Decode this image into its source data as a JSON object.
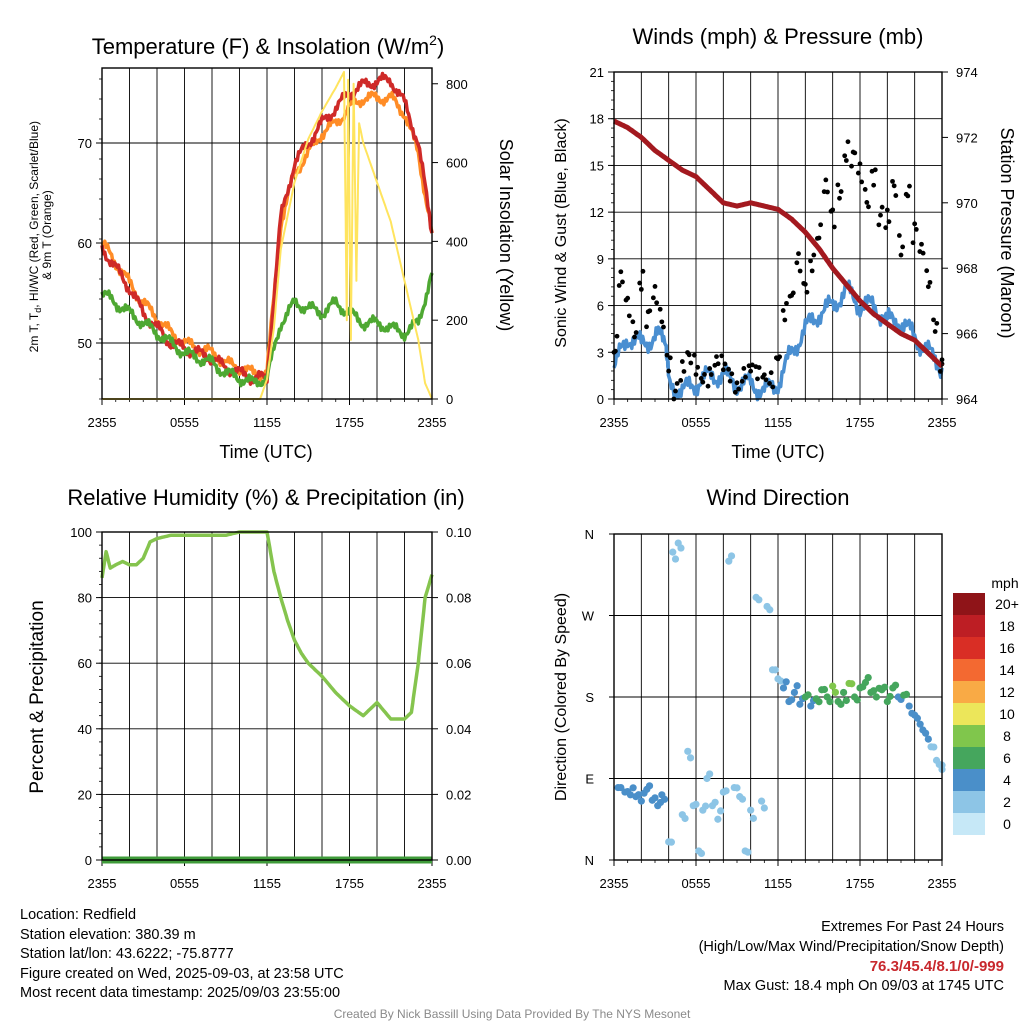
{
  "chart_data": [
    {
      "id": "temperature",
      "type": "line",
      "title": "Temperature (F) & Insolation (W/m",
      "title_sup": "2",
      "title_close": ")",
      "xlabel": "Time (UTC)",
      "ylabel_lines": [
        "2m T, T",
        "d",
        ", HI/WC (Red, Green, Scarlet/Blue)",
        "& 9m T (Orange)"
      ],
      "y2label": "Solar Insolation (Yellow)",
      "x_ticks": [
        "2355",
        "0555",
        "1155",
        "1755",
        "2355"
      ],
      "x_range_hours": [
        0,
        24
      ],
      "ylim": [
        44.4,
        77.5
      ],
      "y_ticks": [
        50,
        60,
        70
      ],
      "y2lim": [
        0,
        840
      ],
      "y2_ticks": [
        0,
        200,
        400,
        600,
        800
      ],
      "grid": true,
      "series": [
        {
          "color": "#ff8c26",
          "x": [
            0,
            1,
            2,
            3,
            4,
            5,
            6,
            7,
            8,
            9,
            10,
            11,
            12,
            13,
            14,
            15,
            16,
            17,
            18,
            19,
            20,
            21,
            22,
            23,
            24
          ],
          "values": [
            60,
            58,
            56,
            54,
            52.5,
            51,
            50,
            49.5,
            49,
            48,
            47.5,
            47,
            47,
            62,
            67,
            69,
            71,
            72,
            73.5,
            74.5,
            74.5,
            74.5,
            73,
            69,
            61
          ]
        },
        {
          "color": "#cf2a28",
          "x": [
            0,
            1,
            2,
            3,
            4,
            5,
            6,
            7,
            8,
            9,
            10,
            11,
            12,
            13,
            14,
            15,
            16,
            17,
            18,
            19,
            20,
            21,
            22,
            23,
            24
          ],
          "values": [
            59.5,
            57.5,
            55.5,
            53,
            51.5,
            50,
            49.5,
            49,
            48.5,
            47.5,
            47,
            46.5,
            46.5,
            62.5,
            68,
            70,
            72,
            73.5,
            75,
            75.8,
            76.2,
            76.3,
            74,
            70,
            61
          ]
        },
        {
          "color": "#4ea832",
          "x": [
            0,
            1,
            2,
            3,
            4,
            5,
            6,
            7,
            8,
            9,
            10,
            11,
            12,
            13,
            14,
            15,
            16,
            17,
            18,
            19,
            20,
            21,
            22,
            23,
            24
          ],
          "values": [
            55,
            54,
            53,
            52,
            51,
            50,
            49,
            48.5,
            48,
            47,
            46.5,
            46,
            46.5,
            52,
            54,
            53.5,
            53,
            54,
            53,
            52,
            52,
            51.5,
            51,
            52,
            57
          ]
        },
        {
          "color": "#ffe45e",
          "axis": "y2",
          "x": [
            0,
            11.5,
            12,
            12.5,
            13,
            14,
            15,
            16,
            17,
            17.6,
            17.8,
            17.9,
            18.1,
            18.3,
            18.5,
            18.7,
            19,
            19.5,
            20,
            21,
            22,
            23,
            23.5,
            24
          ],
          "values": [
            0,
            0,
            50,
            180,
            380,
            550,
            660,
            730,
            790,
            830,
            200,
            810,
            150,
            800,
            300,
            700,
            650,
            600,
            550,
            450,
            300,
            150,
            40,
            0
          ]
        }
      ]
    },
    {
      "id": "winds",
      "type": "line",
      "title": "Winds (mph) & Pressure (mb)",
      "xlabel": "Time (UTC)",
      "ylabel": "Sonic Wind & Gust (Blue, Black)",
      "y2label": "Station Pressure (Maroon)",
      "x_ticks": [
        "2355",
        "0555",
        "1155",
        "1755",
        "2355"
      ],
      "x_range_hours": [
        0,
        24
      ],
      "ylim": [
        0,
        21
      ],
      "y_ticks": [
        0,
        3,
        6,
        9,
        12,
        15,
        18,
        21
      ],
      "y2lim": [
        964,
        974
      ],
      "y2_ticks": [
        964,
        966,
        968,
        970,
        972,
        974
      ],
      "grid": true,
      "series": [
        {
          "color": "#4a8fd1",
          "x": [
            0,
            1,
            2,
            3,
            3.8,
            4,
            5,
            6,
            7,
            8,
            9,
            10,
            11,
            12,
            13,
            14,
            15,
            16,
            17,
            18,
            19,
            20,
            21,
            22,
            23,
            24
          ],
          "values": [
            2,
            4,
            3.5,
            4,
            4,
            1,
            0.5,
            1,
            1.5,
            1.5,
            1,
            1,
            0.5,
            1,
            3,
            4.5,
            5.5,
            6,
            7,
            6,
            6,
            5,
            5,
            4,
            3,
            2
          ]
        },
        {
          "color": "#000000",
          "mode": "points",
          "x": [
            0.1,
            0.5,
            1,
            1.5,
            2,
            2.5,
            3,
            3.5,
            4,
            4.5,
            5,
            5.5,
            6,
            6.5,
            7,
            7.5,
            8,
            8.5,
            9,
            9.5,
            10,
            10.5,
            11,
            11.5,
            12,
            12.5,
            13,
            13.5,
            14,
            14.5,
            15,
            15.5,
            16,
            16.5,
            17,
            17.5,
            18,
            18.5,
            19,
            19.5,
            20,
            20.5,
            21,
            21.5,
            22,
            22.5,
            23,
            23.5,
            24
          ],
          "values": [
            3,
            7,
            6,
            5,
            8,
            5,
            6,
            5,
            3,
            1,
            1.5,
            2,
            2,
            2,
            2,
            2,
            1.5,
            1.5,
            1.5,
            2,
            1.5,
            1,
            1.5,
            2,
            3,
            5,
            6,
            9,
            8,
            9,
            10,
            13,
            12,
            14,
            16,
            15,
            14,
            13,
            15,
            12,
            11,
            13,
            10,
            14,
            11,
            9,
            7,
            5,
            3
          ]
        },
        {
          "color": "#a3191f",
          "axis": "y2",
          "x": [
            0,
            1,
            2,
            3,
            4,
            5,
            6,
            7,
            8,
            9,
            10,
            11,
            12,
            13,
            14,
            15,
            16,
            17,
            18,
            19,
            20,
            21,
            22,
            23,
            24
          ],
          "values": [
            972.5,
            972.3,
            972,
            971.6,
            971.3,
            971,
            970.8,
            970.4,
            970,
            969.9,
            970,
            969.9,
            969.8,
            969.5,
            969.1,
            968.6,
            968,
            967.5,
            967,
            966.6,
            966.3,
            966,
            965.8,
            965.4,
            965
          ]
        }
      ]
    },
    {
      "id": "humidity",
      "type": "line",
      "title": "Relative Humidity (%) & Precipitation (in)",
      "ylabel": "Percent & Precipitation",
      "x_ticks": [
        "2355",
        "0555",
        "1155",
        "1755",
        "2355"
      ],
      "x_range_hours": [
        0,
        24
      ],
      "ylim": [
        0,
        100
      ],
      "y_ticks": [
        0,
        20,
        40,
        60,
        80,
        100
      ],
      "y2lim": [
        0,
        0.1
      ],
      "y2_ticks": [
        "0.00",
        "0.02",
        "0.04",
        "0.06",
        "0.08",
        "0.10"
      ],
      "grid": true,
      "series": [
        {
          "color": "#85c44e",
          "x": [
            0,
            0.3,
            0.6,
            1,
            1.5,
            2,
            2.5,
            3,
            3.5,
            4,
            5,
            6,
            7,
            8,
            9,
            10,
            11,
            12,
            12.5,
            13,
            13.5,
            14,
            14.5,
            15,
            16,
            17,
            18,
            19,
            20,
            21,
            22,
            22.5,
            23,
            23.5,
            24
          ],
          "values": [
            86,
            94,
            89,
            90,
            91,
            90,
            90,
            92,
            97,
            98,
            99,
            99,
            99,
            99,
            99,
            100,
            100,
            100,
            88,
            80,
            73,
            67,
            63,
            60,
            56,
            51,
            47,
            44,
            48,
            43,
            43,
            45,
            60,
            80,
            87
          ]
        },
        {
          "color": "#3f9b3a",
          "x": [
            0,
            24
          ],
          "values": [
            0,
            0
          ]
        }
      ]
    },
    {
      "id": "wind-direction",
      "type": "scatter",
      "title": "Wind Direction",
      "ylabel": "Direction (Colored By Speed)",
      "x_ticks": [
        "2355",
        "0555",
        "1155",
        "1755",
        "2355"
      ],
      "x_range_hours": [
        0,
        24
      ],
      "y_ticks": [
        "N",
        "E",
        "S",
        "W",
        "N"
      ],
      "ylim_degrees": [
        0,
        360
      ],
      "grid": true,
      "legend": {
        "title": "mph",
        "position": "right",
        "labels": [
          "0",
          "2",
          "4",
          "6",
          "8",
          "10",
          "12",
          "14",
          "16",
          "18",
          "20+"
        ],
        "colors": [
          "#c6e8f7",
          "#8dc5e6",
          "#4a8fc9",
          "#45a65d",
          "#80c64c",
          "#ece65a",
          "#f9aa45",
          "#f36931",
          "#d92e25",
          "#bd1e24",
          "#8f1418"
        ]
      },
      "points": [
        {
          "x": 0.3,
          "dir": 80,
          "speed": 3
        },
        {
          "x": 0.8,
          "dir": 75,
          "speed": 3
        },
        {
          "x": 1.2,
          "dir": 72,
          "speed": 4
        },
        {
          "x": 1.6,
          "dir": 70,
          "speed": 4
        },
        {
          "x": 2.0,
          "dir": 65,
          "speed": 3
        },
        {
          "x": 2.4,
          "dir": 78,
          "speed": 4
        },
        {
          "x": 2.8,
          "dir": 66,
          "speed": 3
        },
        {
          "x": 3.2,
          "dir": 60,
          "speed": 4
        },
        {
          "x": 3.5,
          "dir": 72,
          "speed": 3
        },
        {
          "x": 4.0,
          "dir": 20,
          "speed": 1
        },
        {
          "x": 4.3,
          "dir": 340,
          "speed": 1
        },
        {
          "x": 4.7,
          "dir": 350,
          "speed": 1
        },
        {
          "x": 5.0,
          "dir": 50,
          "speed": 1
        },
        {
          "x": 5.4,
          "dir": 120,
          "speed": 1
        },
        {
          "x": 5.8,
          "dir": 60,
          "speed": 1
        },
        {
          "x": 6.2,
          "dir": 10,
          "speed": 1
        },
        {
          "x": 6.5,
          "dir": 55,
          "speed": 1
        },
        {
          "x": 6.8,
          "dir": 90,
          "speed": 1
        },
        {
          "x": 7.2,
          "dir": 60,
          "speed": 2
        },
        {
          "x": 7.6,
          "dir": 45,
          "speed": 1
        },
        {
          "x": 8.0,
          "dir": 75,
          "speed": 1
        },
        {
          "x": 8.4,
          "dir": 330,
          "speed": 2
        },
        {
          "x": 8.8,
          "dir": 80,
          "speed": 1
        },
        {
          "x": 9.2,
          "dir": 70,
          "speed": 2
        },
        {
          "x": 9.6,
          "dir": 10,
          "speed": 1
        },
        {
          "x": 10.0,
          "dir": 55,
          "speed": 1
        },
        {
          "x": 10.4,
          "dir": 290,
          "speed": 1
        },
        {
          "x": 10.8,
          "dir": 65,
          "speed": 2
        },
        {
          "x": 11.2,
          "dir": 280,
          "speed": 2
        },
        {
          "x": 11.6,
          "dir": 210,
          "speed": 2
        },
        {
          "x": 12.0,
          "dir": 200,
          "speed": 2
        },
        {
          "x": 12.4,
          "dir": 190,
          "speed": 3
        },
        {
          "x": 12.8,
          "dir": 175,
          "speed": 4
        },
        {
          "x": 13.2,
          "dir": 185,
          "speed": 4
        },
        {
          "x": 13.6,
          "dir": 172,
          "speed": 3
        },
        {
          "x": 14.0,
          "dir": 180,
          "speed": 5
        },
        {
          "x": 14.4,
          "dir": 170,
          "speed": 4
        },
        {
          "x": 14.8,
          "dir": 178,
          "speed": 5
        },
        {
          "x": 15.2,
          "dir": 188,
          "speed": 6
        },
        {
          "x": 15.6,
          "dir": 180,
          "speed": 6
        },
        {
          "x": 16.0,
          "dir": 192,
          "speed": 7
        },
        {
          "x": 16.4,
          "dir": 175,
          "speed": 6
        },
        {
          "x": 16.8,
          "dir": 185,
          "speed": 6
        },
        {
          "x": 17.2,
          "dir": 195,
          "speed": 7
        },
        {
          "x": 17.6,
          "dir": 180,
          "speed": 6
        },
        {
          "x": 18.0,
          "dir": 190,
          "speed": 6
        },
        {
          "x": 18.4,
          "dir": 196,
          "speed": 6
        },
        {
          "x": 18.8,
          "dir": 185,
          "speed": 6
        },
        {
          "x": 19.2,
          "dir": 180,
          "speed": 6
        },
        {
          "x": 19.6,
          "dir": 188,
          "speed": 5
        },
        {
          "x": 20.0,
          "dir": 175,
          "speed": 5
        },
        {
          "x": 20.4,
          "dir": 190,
          "speed": 6
        },
        {
          "x": 20.8,
          "dir": 180,
          "speed": 4
        },
        {
          "x": 21.2,
          "dir": 182,
          "speed": 5
        },
        {
          "x": 21.6,
          "dir": 170,
          "speed": 4
        },
        {
          "x": 22.0,
          "dir": 160,
          "speed": 4
        },
        {
          "x": 22.4,
          "dir": 150,
          "speed": 3
        },
        {
          "x": 22.8,
          "dir": 140,
          "speed": 3
        },
        {
          "x": 23.2,
          "dir": 125,
          "speed": 2
        },
        {
          "x": 23.6,
          "dir": 110,
          "speed": 2
        },
        {
          "x": 24.0,
          "dir": 100,
          "speed": 2
        }
      ]
    }
  ],
  "info": {
    "location": "Location: Redfield",
    "elevation": "Station elevation: 380.39 m",
    "latlon": "Station lat/lon: 43.6222; -75.8777",
    "created": "Figure created on Wed, 2025-09-03, at 23:58 UTC",
    "recent": "Most recent data timestamp: 2025/09/03 23:55:00"
  },
  "extremes": {
    "title": "Extremes For Past 24 Hours",
    "subtitle": "(High/Low/Max Wind/Precipitation/Snow Depth)",
    "values": "76.3/45.4/8.1/0/-999",
    "gust": "Max Gust: 18.4 mph On 09/03 at 1745 UTC"
  },
  "credit": "Created By Nick Bassill Using Data Provided By The NYS Mesonet"
}
